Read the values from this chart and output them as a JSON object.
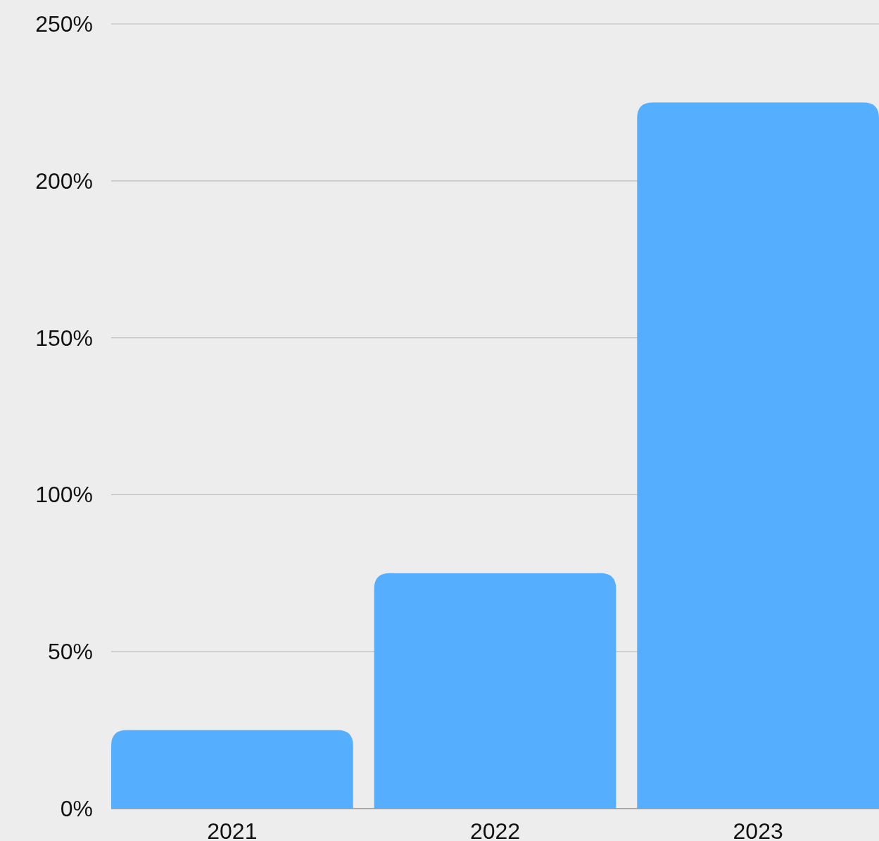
{
  "chart_data": {
    "type": "bar",
    "categories": [
      "2021",
      "2022",
      "2023"
    ],
    "values": [
      25,
      75,
      225
    ],
    "color": "#56aefe",
    "ylim": [
      0,
      250
    ],
    "yticks": [
      {
        "value": 0,
        "label": "0%"
      },
      {
        "value": 50,
        "label": "50%"
      },
      {
        "value": 100,
        "label": "100%"
      },
      {
        "value": 150,
        "label": "150%"
      },
      {
        "value": 200,
        "label": "200%"
      },
      {
        "value": 250,
        "label": "250%"
      }
    ],
    "grid": "y"
  }
}
